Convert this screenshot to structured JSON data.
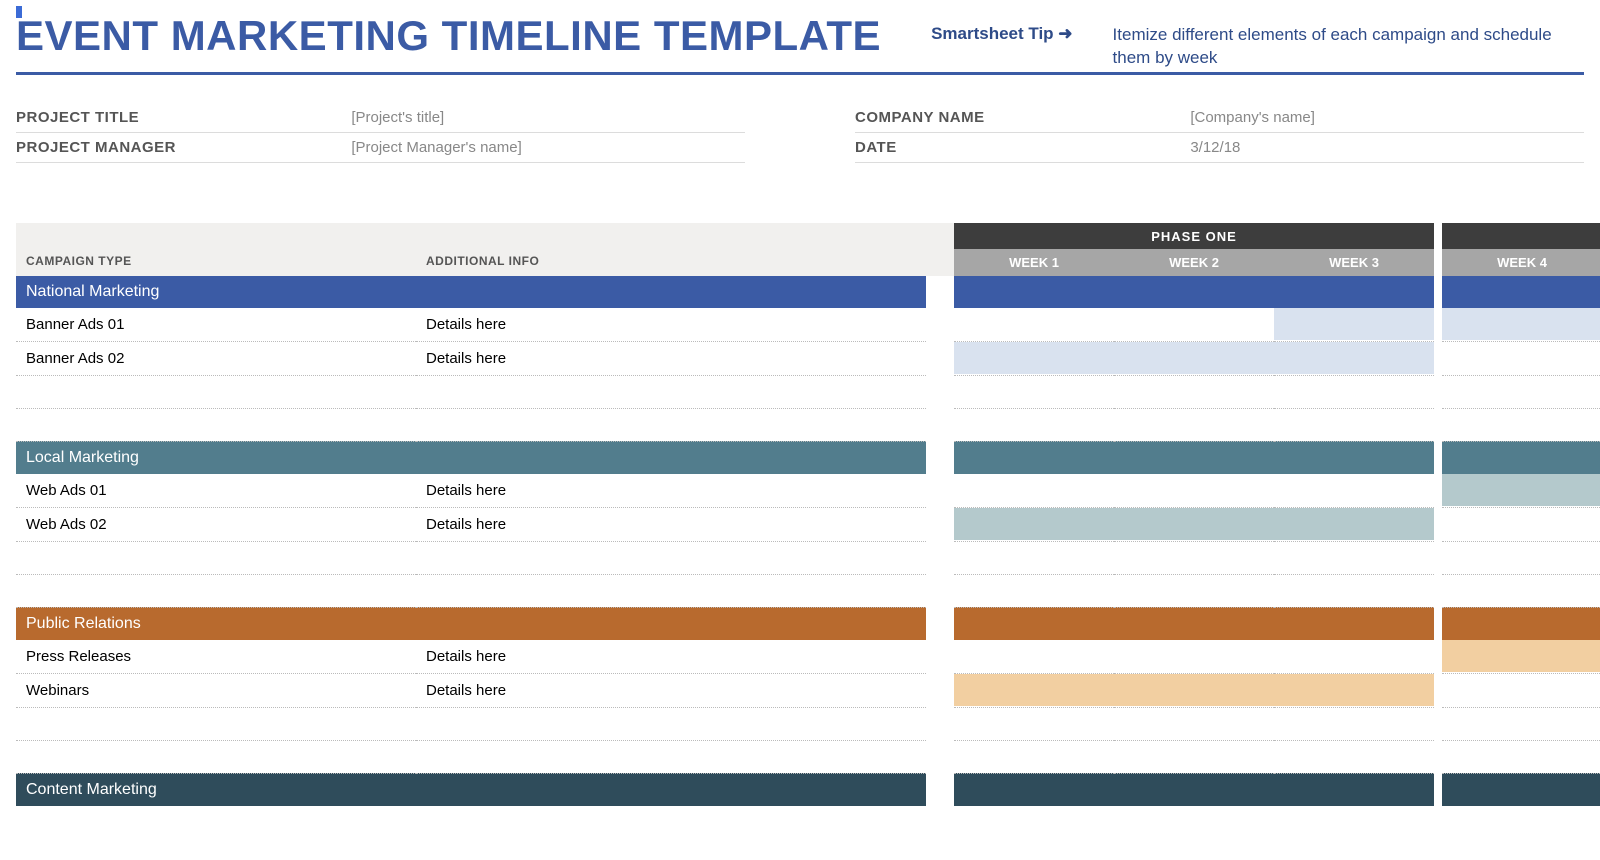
{
  "title": "EVENT MARKETING TIMELINE TEMPLATE",
  "tip": {
    "label": "Smartsheet Tip ➜",
    "text": "Itemize different elements of each campaign and schedule them by week"
  },
  "meta": {
    "left": [
      {
        "label": "PROJECT TITLE",
        "value": "[Project's title]"
      },
      {
        "label": "PROJECT MANAGER",
        "value": "[Project Manager's name]"
      }
    ],
    "right": [
      {
        "label": "COMPANY NAME",
        "value": "[Company's name]"
      },
      {
        "label": "DATE",
        "value": "3/12/18"
      }
    ]
  },
  "colors": {
    "title": "#3b5ba5",
    "header_bg": "#f1f0ee",
    "phase_bg": "#3d3d3d",
    "week_bg": "#a6a6a6",
    "dotted": "#bbbbbb"
  },
  "table": {
    "left_headers": [
      "CAMPAIGN TYPE",
      "ADDITIONAL INFO"
    ],
    "phase_label": "PHASE ONE",
    "weeks": [
      "WEEK 1",
      "WEEK 2",
      "WEEK 3",
      "WEEK 4"
    ],
    "sections": [
      {
        "name": "National Marketing",
        "color": "#3b5ba5",
        "fill_light": "#d9e2ef",
        "rows": [
          {
            "type": "Banner Ads 01",
            "info": "Details here",
            "weeks": [
              false,
              false,
              true,
              true
            ]
          },
          {
            "type": "Banner Ads 02",
            "info": "Details here",
            "weeks": [
              true,
              true,
              true,
              false
            ]
          },
          {
            "type": "",
            "info": "",
            "weeks": [
              false,
              false,
              false,
              false
            ]
          },
          {
            "type": "",
            "info": "",
            "weeks": [
              false,
              false,
              false,
              false
            ]
          }
        ]
      },
      {
        "name": "Local Marketing",
        "color": "#527d8d",
        "fill_light": "#b4c9cc",
        "rows": [
          {
            "type": "Web Ads 01",
            "info": "Details here",
            "weeks": [
              false,
              false,
              false,
              true
            ]
          },
          {
            "type": "Web Ads 02",
            "info": "Details here",
            "weeks": [
              true,
              true,
              true,
              false
            ]
          },
          {
            "type": "",
            "info": "",
            "weeks": [
              false,
              false,
              false,
              false
            ]
          },
          {
            "type": "",
            "info": "",
            "weeks": [
              false,
              false,
              false,
              false
            ]
          }
        ]
      },
      {
        "name": "Public Relations",
        "color": "#b86a2e",
        "fill_light": "#f2cfa1",
        "rows": [
          {
            "type": "Press Releases",
            "info": "Details here",
            "weeks": [
              false,
              false,
              false,
              true
            ]
          },
          {
            "type": "Webinars",
            "info": "Details here",
            "weeks": [
              true,
              true,
              true,
              false
            ]
          },
          {
            "type": "",
            "info": "",
            "weeks": [
              false,
              false,
              false,
              false
            ]
          },
          {
            "type": "",
            "info": "",
            "weeks": [
              false,
              false,
              false,
              false
            ]
          }
        ]
      },
      {
        "name": "Content Marketing",
        "color": "#2f4c5b",
        "fill_light": "#b9c9d0",
        "rows": []
      }
    ]
  }
}
